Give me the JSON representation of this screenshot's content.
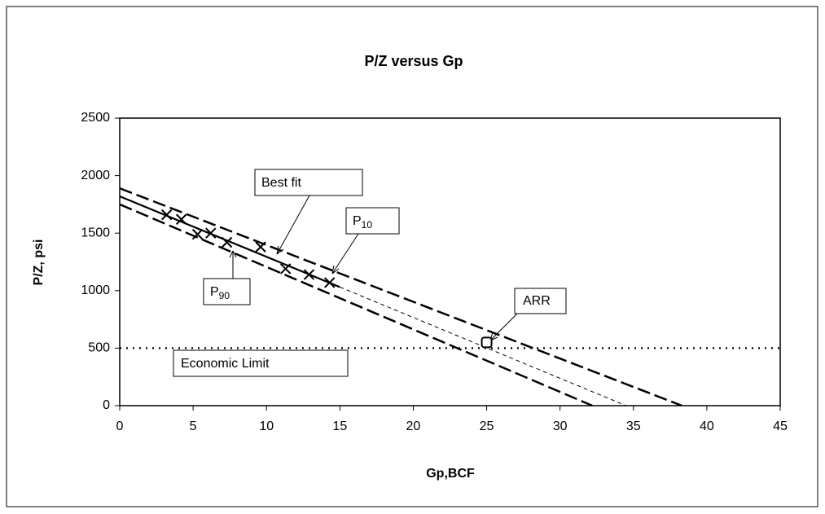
{
  "chart_data": {
    "type": "line",
    "title": "P/Z versus Gp",
    "x_label": "Gp,BCF",
    "y_label": "P/Z, psi",
    "xlim": [
      0,
      45
    ],
    "ylim": [
      0,
      2500
    ],
    "xticks": [
      0,
      5,
      10,
      15,
      20,
      25,
      30,
      35,
      40,
      45
    ],
    "yticks": [
      0,
      500,
      1000,
      1500,
      2000,
      2500
    ],
    "grid": false,
    "legend": false,
    "series": [
      {
        "name": "Best fit",
        "color": "#000000",
        "x": [
          0,
          15,
          34.5
        ],
        "values": [
          1820,
          1031,
          0
        ]
      },
      {
        "name": "P",
        "name_sub": "10",
        "color": "#000000",
        "x": [
          0,
          38.3
        ],
        "values": [
          1890,
          0
        ]
      },
      {
        "name": "P",
        "name_sub": "90",
        "color": "#000000",
        "x": [
          0,
          32.2
        ],
        "values": [
          1750,
          0
        ]
      },
      {
        "name": "Economic Limit",
        "color": "#000000",
        "x": [
          0,
          45
        ],
        "values": [
          500,
          500
        ]
      }
    ],
    "points": {
      "color": "#000000",
      "x": [
        3.2,
        4.2,
        5.3,
        6.2,
        7.3,
        9.6,
        11.3,
        12.9,
        14.3
      ],
      "values": [
        1660,
        1620,
        1490,
        1500,
        1420,
        1380,
        1190,
        1140,
        1070
      ]
    },
    "arr": {
      "name": "ARR",
      "x": 25,
      "value": 550
    }
  }
}
